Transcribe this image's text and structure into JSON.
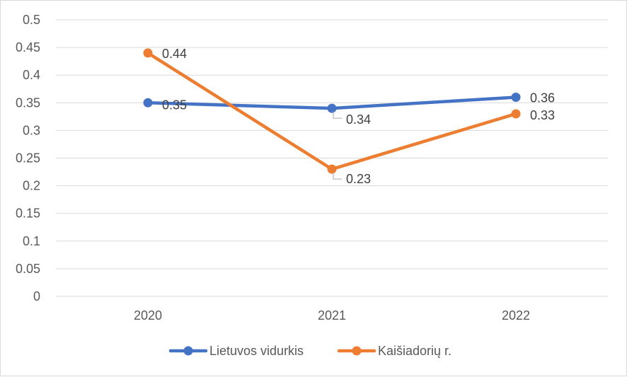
{
  "chart_data": {
    "type": "line",
    "title": "",
    "xlabel": "",
    "ylabel": "",
    "categories": [
      "2020",
      "2021",
      "2022"
    ],
    "ylim": [
      0,
      0.5
    ],
    "yticks": [
      0,
      0.05,
      0.1,
      0.15,
      0.2,
      0.25,
      0.3,
      0.35,
      0.4,
      0.45,
      0.5
    ],
    "ytick_labels": [
      "0",
      "0.05",
      "0.1",
      "0.15",
      "0.2",
      "0.25",
      "0.3",
      "0.35",
      "0.4",
      "0.45",
      "0.5"
    ],
    "grid": "horizontal",
    "legend_position": "bottom",
    "series": [
      {
        "name": "Lietuvos vidurkis",
        "color": "#4472c4",
        "values": [
          0.35,
          0.34,
          0.36
        ],
        "labels": [
          "0.35",
          "0.34",
          "0.36"
        ]
      },
      {
        "name": "Kaišiadorių r.",
        "color": "#ed7d31",
        "values": [
          0.44,
          0.23,
          0.33
        ],
        "labels": [
          "0.44",
          "0.23",
          "0.33"
        ]
      }
    ]
  }
}
